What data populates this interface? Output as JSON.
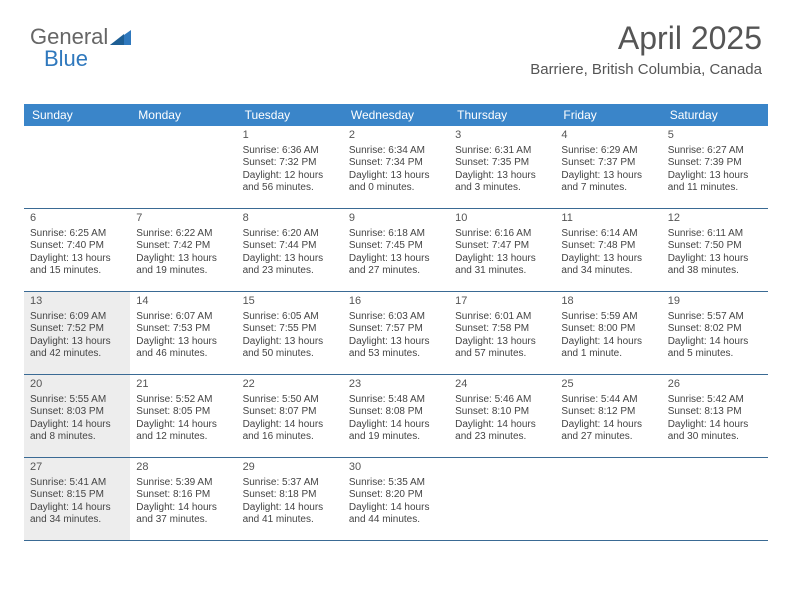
{
  "brand": {
    "part1": "General",
    "part2": "Blue"
  },
  "title": {
    "month": "April 2025",
    "location": "Barriere, British Columbia, Canada"
  },
  "colors": {
    "header_bg": "#3a85c9",
    "header_text": "#ffffff",
    "rule": "#3a6a94",
    "shaded_bg": "#ededed",
    "body_text": "#444444",
    "title_text": "#555555",
    "brand_accent": "#2f78bd"
  },
  "day_labels": [
    "Sunday",
    "Monday",
    "Tuesday",
    "Wednesday",
    "Thursday",
    "Friday",
    "Saturday"
  ],
  "weeks": [
    [
      {
        "blank": true
      },
      {
        "blank": true
      },
      {
        "num": "1",
        "sunrise": "6:36 AM",
        "sunset": "7:32 PM",
        "daylight": "12 hours and 56 minutes."
      },
      {
        "num": "2",
        "sunrise": "6:34 AM",
        "sunset": "7:34 PM",
        "daylight": "13 hours and 0 minutes."
      },
      {
        "num": "3",
        "sunrise": "6:31 AM",
        "sunset": "7:35 PM",
        "daylight": "13 hours and 3 minutes."
      },
      {
        "num": "4",
        "sunrise": "6:29 AM",
        "sunset": "7:37 PM",
        "daylight": "13 hours and 7 minutes."
      },
      {
        "num": "5",
        "sunrise": "6:27 AM",
        "sunset": "7:39 PM",
        "daylight": "13 hours and 11 minutes."
      }
    ],
    [
      {
        "num": "6",
        "sunrise": "6:25 AM",
        "sunset": "7:40 PM",
        "daylight": "13 hours and 15 minutes."
      },
      {
        "num": "7",
        "sunrise": "6:22 AM",
        "sunset": "7:42 PM",
        "daylight": "13 hours and 19 minutes."
      },
      {
        "num": "8",
        "sunrise": "6:20 AM",
        "sunset": "7:44 PM",
        "daylight": "13 hours and 23 minutes."
      },
      {
        "num": "9",
        "sunrise": "6:18 AM",
        "sunset": "7:45 PM",
        "daylight": "13 hours and 27 minutes."
      },
      {
        "num": "10",
        "sunrise": "6:16 AM",
        "sunset": "7:47 PM",
        "daylight": "13 hours and 31 minutes."
      },
      {
        "num": "11",
        "sunrise": "6:14 AM",
        "sunset": "7:48 PM",
        "daylight": "13 hours and 34 minutes."
      },
      {
        "num": "12",
        "sunrise": "6:11 AM",
        "sunset": "7:50 PM",
        "daylight": "13 hours and 38 minutes."
      }
    ],
    [
      {
        "num": "13",
        "shaded": true,
        "sunrise": "6:09 AM",
        "sunset": "7:52 PM",
        "daylight": "13 hours and 42 minutes."
      },
      {
        "num": "14",
        "sunrise": "6:07 AM",
        "sunset": "7:53 PM",
        "daylight": "13 hours and 46 minutes."
      },
      {
        "num": "15",
        "sunrise": "6:05 AM",
        "sunset": "7:55 PM",
        "daylight": "13 hours and 50 minutes."
      },
      {
        "num": "16",
        "sunrise": "6:03 AM",
        "sunset": "7:57 PM",
        "daylight": "13 hours and 53 minutes."
      },
      {
        "num": "17",
        "sunrise": "6:01 AM",
        "sunset": "7:58 PM",
        "daylight": "13 hours and 57 minutes."
      },
      {
        "num": "18",
        "sunrise": "5:59 AM",
        "sunset": "8:00 PM",
        "daylight": "14 hours and 1 minute."
      },
      {
        "num": "19",
        "sunrise": "5:57 AM",
        "sunset": "8:02 PM",
        "daylight": "14 hours and 5 minutes."
      }
    ],
    [
      {
        "num": "20",
        "shaded": true,
        "sunrise": "5:55 AM",
        "sunset": "8:03 PM",
        "daylight": "14 hours and 8 minutes."
      },
      {
        "num": "21",
        "sunrise": "5:52 AM",
        "sunset": "8:05 PM",
        "daylight": "14 hours and 12 minutes."
      },
      {
        "num": "22",
        "sunrise": "5:50 AM",
        "sunset": "8:07 PM",
        "daylight": "14 hours and 16 minutes."
      },
      {
        "num": "23",
        "sunrise": "5:48 AM",
        "sunset": "8:08 PM",
        "daylight": "14 hours and 19 minutes."
      },
      {
        "num": "24",
        "sunrise": "5:46 AM",
        "sunset": "8:10 PM",
        "daylight": "14 hours and 23 minutes."
      },
      {
        "num": "25",
        "sunrise": "5:44 AM",
        "sunset": "8:12 PM",
        "daylight": "14 hours and 27 minutes."
      },
      {
        "num": "26",
        "sunrise": "5:42 AM",
        "sunset": "8:13 PM",
        "daylight": "14 hours and 30 minutes."
      }
    ],
    [
      {
        "num": "27",
        "shaded": true,
        "sunrise": "5:41 AM",
        "sunset": "8:15 PM",
        "daylight": "14 hours and 34 minutes."
      },
      {
        "num": "28",
        "sunrise": "5:39 AM",
        "sunset": "8:16 PM",
        "daylight": "14 hours and 37 minutes."
      },
      {
        "num": "29",
        "sunrise": "5:37 AM",
        "sunset": "8:18 PM",
        "daylight": "14 hours and 41 minutes."
      },
      {
        "num": "30",
        "sunrise": "5:35 AM",
        "sunset": "8:20 PM",
        "daylight": "14 hours and 44 minutes."
      },
      {
        "blank": true
      },
      {
        "blank": true
      },
      {
        "blank": true
      }
    ]
  ],
  "labels": {
    "sunrise_prefix": "Sunrise: ",
    "sunset_prefix": "Sunset: ",
    "daylight_prefix": "Daylight: "
  }
}
